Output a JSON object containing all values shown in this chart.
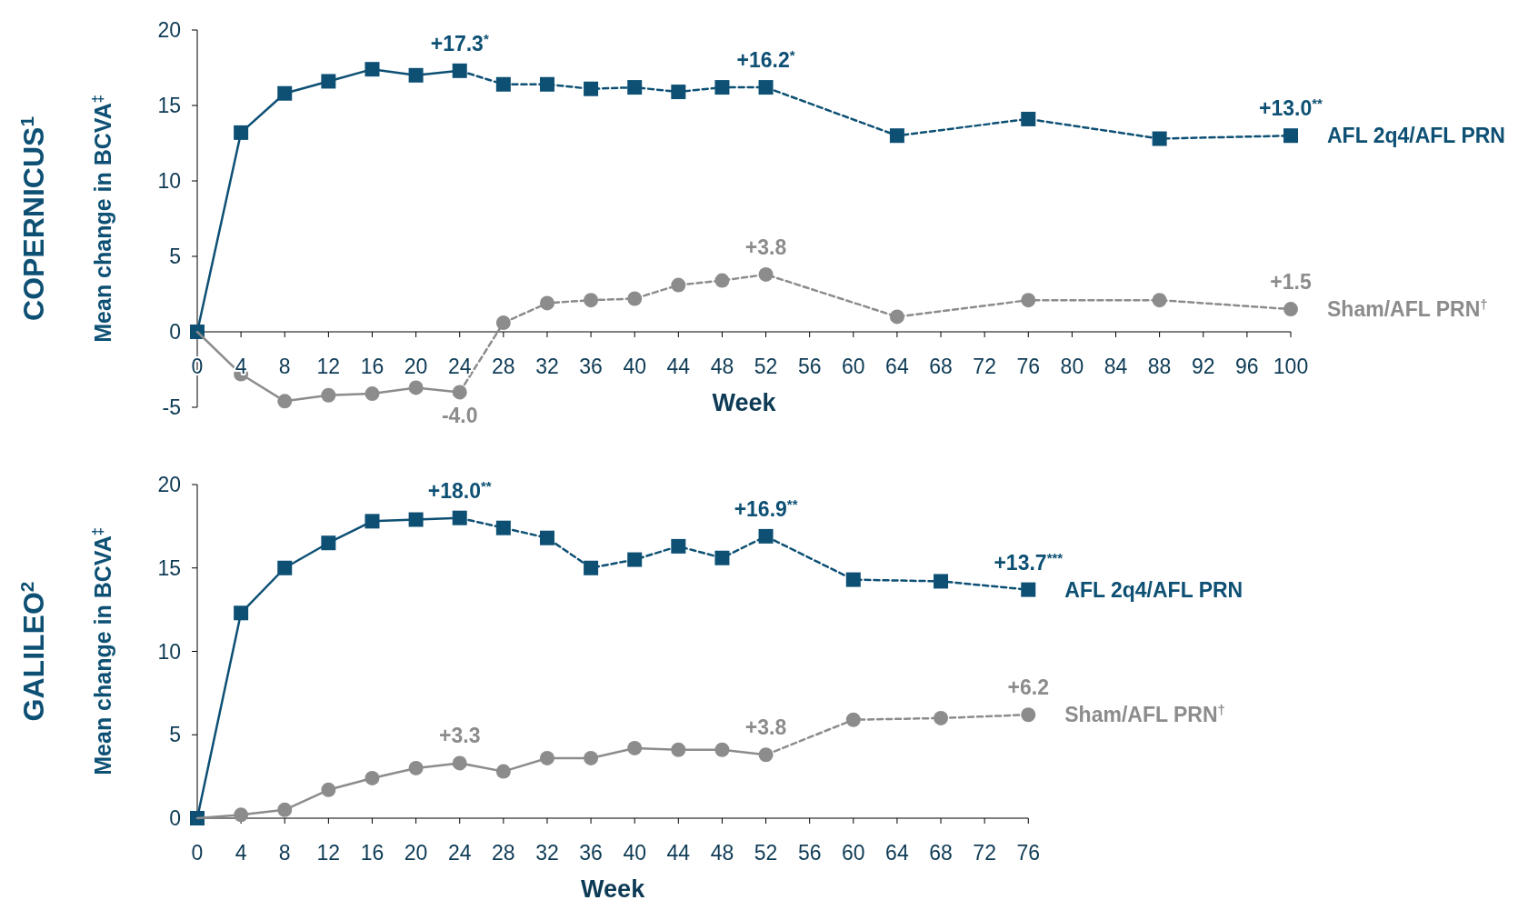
{
  "chart_data": [
    {
      "type": "line",
      "title": "COPERNICUS$^{1}$",
      "xlabel": "Week",
      "ylabel": "Mean change in BCVA$^{‡}$",
      "xlim": [
        0,
        100
      ],
      "ylim": [
        -5,
        20
      ],
      "xticks": [
        0,
        4,
        8,
        12,
        16,
        20,
        24,
        28,
        32,
        36,
        40,
        44,
        48,
        52,
        56,
        60,
        64,
        68,
        72,
        76,
        80,
        84,
        88,
        92,
        96,
        100
      ],
      "yticks": [
        -5,
        0,
        5,
        10,
        15,
        20
      ],
      "series": [
        {
          "color": "#0d5074",
          "marker": "square",
          "line_style": "solid",
          "x": [
            0,
            4,
            8,
            12,
            16,
            20,
            24
          ],
          "values": [
            0,
            13.2,
            15.8,
            16.6,
            17.4,
            17.0,
            17.3
          ]
        },
        {
          "name": "AFL 2q4/AFL PRN",
          "color": "#0d5074",
          "marker": "square",
          "line_style": "dashed",
          "x": [
            24,
            28,
            32,
            36,
            40,
            44,
            48,
            52,
            64,
            76,
            88,
            100
          ],
          "values": [
            17.3,
            16.4,
            16.4,
            16.1,
            16.2,
            15.9,
            16.2,
            16.2,
            13.0,
            14.1,
            12.8,
            13.0
          ]
        },
        {
          "color": "#8c8c8c",
          "marker": "circle",
          "line_style": "solid",
          "x": [
            0,
            4,
            8,
            12,
            16,
            20,
            24
          ],
          "values": [
            0,
            -2.8,
            -4.6,
            -4.2,
            -4.1,
            -3.7,
            -4.0
          ]
        },
        {
          "name": "Sham/AFL PRN$^{†}$",
          "color": "#8c8c8c",
          "marker": "circle",
          "line_style": "dashed",
          "x": [
            24,
            28,
            32,
            36,
            40,
            44,
            48,
            52,
            64,
            76,
            88,
            100
          ],
          "values": [
            -4.0,
            0.6,
            1.9,
            2.1,
            2.2,
            3.1,
            3.4,
            3.8,
            1.0,
            2.1,
            2.1,
            1.5
          ]
        }
      ],
      "annotations": [
        {
          "text": "+17.3$^{*}$",
          "x": 24,
          "y": 17.3
        },
        {
          "text": "+16.2$^{*}$",
          "x": 52,
          "y": 16.2
        },
        {
          "text": "+13.0$^{**}$",
          "x": 100,
          "y": 13.0
        },
        {
          "text": "-4.0",
          "x": 24,
          "y": -4.0
        },
        {
          "text": "+3.8",
          "x": 52,
          "y": 3.8
        },
        {
          "text": "+1.5",
          "x": 100,
          "y": 1.5
        }
      ]
    },
    {
      "type": "line",
      "title": "GALILEO$^{2}$",
      "xlabel": "Week",
      "ylabel": "Mean change in BCVA$^{‡}$",
      "xlim": [
        0,
        76
      ],
      "ylim": [
        0,
        20
      ],
      "xticks": [
        0,
        4,
        8,
        12,
        16,
        20,
        24,
        28,
        32,
        36,
        40,
        44,
        48,
        52,
        56,
        60,
        64,
        68,
        72,
        76
      ],
      "yticks": [
        0,
        5,
        10,
        15,
        20
      ],
      "series": [
        {
          "color": "#0d5074",
          "marker": "square",
          "line_style": "solid",
          "x": [
            0,
            4,
            8,
            12,
            16,
            20,
            24
          ],
          "values": [
            0,
            12.3,
            15.0,
            16.5,
            17.8,
            17.9,
            18.0
          ]
        },
        {
          "name": "AFL 2q4/AFL PRN",
          "color": "#0d5074",
          "marker": "square",
          "line_style": "dashed",
          "x": [
            24,
            28,
            32,
            36,
            40,
            44,
            48,
            52,
            60,
            68,
            76
          ],
          "values": [
            18.0,
            17.4,
            16.8,
            15.0,
            15.5,
            16.3,
            15.6,
            16.9,
            14.3,
            14.2,
            13.7
          ]
        },
        {
          "color": "#8c8c8c",
          "marker": "circle",
          "line_style": "solid",
          "x": [
            0,
            4,
            8,
            12,
            16,
            20,
            24,
            28,
            32,
            36,
            40,
            44,
            48,
            52
          ],
          "values": [
            0,
            0.2,
            0.5,
            1.7,
            2.4,
            3.0,
            3.3,
            2.8,
            3.6,
            3.6,
            4.2,
            4.1,
            4.1,
            3.8
          ]
        },
        {
          "name": "Sham/AFL PRN$^{†}$",
          "color": "#8c8c8c",
          "marker": "circle",
          "line_style": "dashed",
          "x": [
            52,
            60,
            68,
            76
          ],
          "values": [
            3.8,
            5.9,
            6.0,
            6.2
          ]
        }
      ],
      "annotations": [
        {
          "text": "+18.0$^{**}$",
          "x": 24,
          "y": 18.0
        },
        {
          "text": "+16.9$^{**}$",
          "x": 52,
          "y": 16.9
        },
        {
          "text": "+13.7$^{***}$",
          "x": 76,
          "y": 13.7
        },
        {
          "text": "+3.3",
          "x": 24,
          "y": 3.3
        },
        {
          "text": "+3.8",
          "x": 52,
          "y": 3.8
        },
        {
          "text": "+6.2",
          "x": 76,
          "y": 6.2
        }
      ]
    }
  ]
}
